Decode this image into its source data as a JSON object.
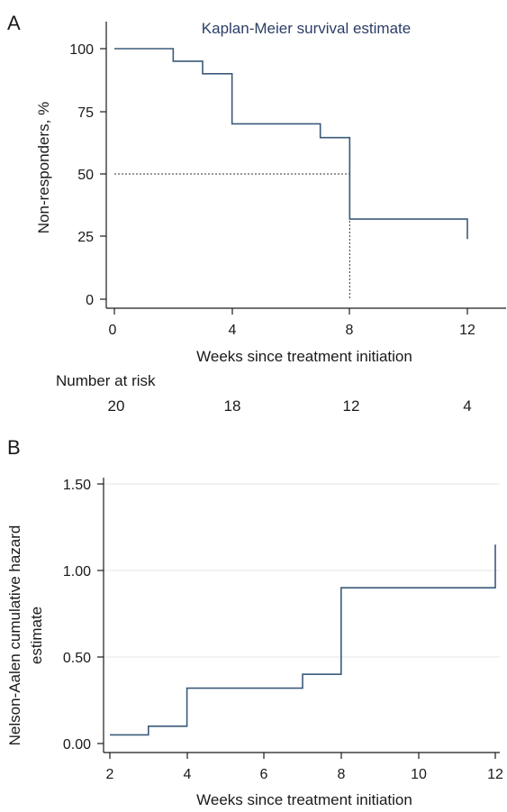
{
  "colors": {
    "line": "#3b5a7a",
    "title": "#2c3e66"
  },
  "chart_data": [
    {
      "panel_label": "A",
      "type": "line",
      "step": true,
      "title": "Kaplan-Meier survival estimate",
      "xlabel": "Weeks since treatment initiation",
      "ylabel": "Non-responders, %",
      "xlim": [
        0,
        12
      ],
      "ylim": [
        0,
        100
      ],
      "xticks": [
        "0",
        "4",
        "8",
        "12"
      ],
      "yticks": [
        "0",
        "25",
        "50",
        "75",
        "100"
      ],
      "series": [
        {
          "x": [
            0,
            2,
            3,
            4,
            7,
            8,
            12,
            12
          ],
          "y": [
            100,
            95,
            90,
            70,
            64.5,
            32,
            32,
            24
          ]
        }
      ],
      "median": {
        "x": 8,
        "y": 50
      },
      "risk_table": {
        "title": "Number at risk",
        "x": [
          0,
          4,
          8,
          12
        ],
        "values": [
          "20",
          "18",
          "12",
          "4"
        ]
      }
    },
    {
      "panel_label": "B",
      "type": "line",
      "step": true,
      "xlabel": "Weeks since treatment initiation",
      "ylabel": "Nelson-Aalen cumulative hazard estimate",
      "ylabel_lines": [
        "Nelson-Aalen cumulative hazard",
        "estimate"
      ],
      "xlim": [
        2,
        12
      ],
      "ylim": [
        0,
        1.5
      ],
      "xticks": [
        "2",
        "4",
        "6",
        "8",
        "10",
        "12"
      ],
      "yticks": [
        "0.00",
        "0.50",
        "1.00",
        "1.50"
      ],
      "grid": true,
      "series": [
        {
          "x": [
            2,
            3,
            4,
            7,
            8,
            12,
            12
          ],
          "y": [
            0.05,
            0.1,
            0.32,
            0.4,
            0.9,
            0.9,
            1.15
          ]
        }
      ]
    }
  ]
}
